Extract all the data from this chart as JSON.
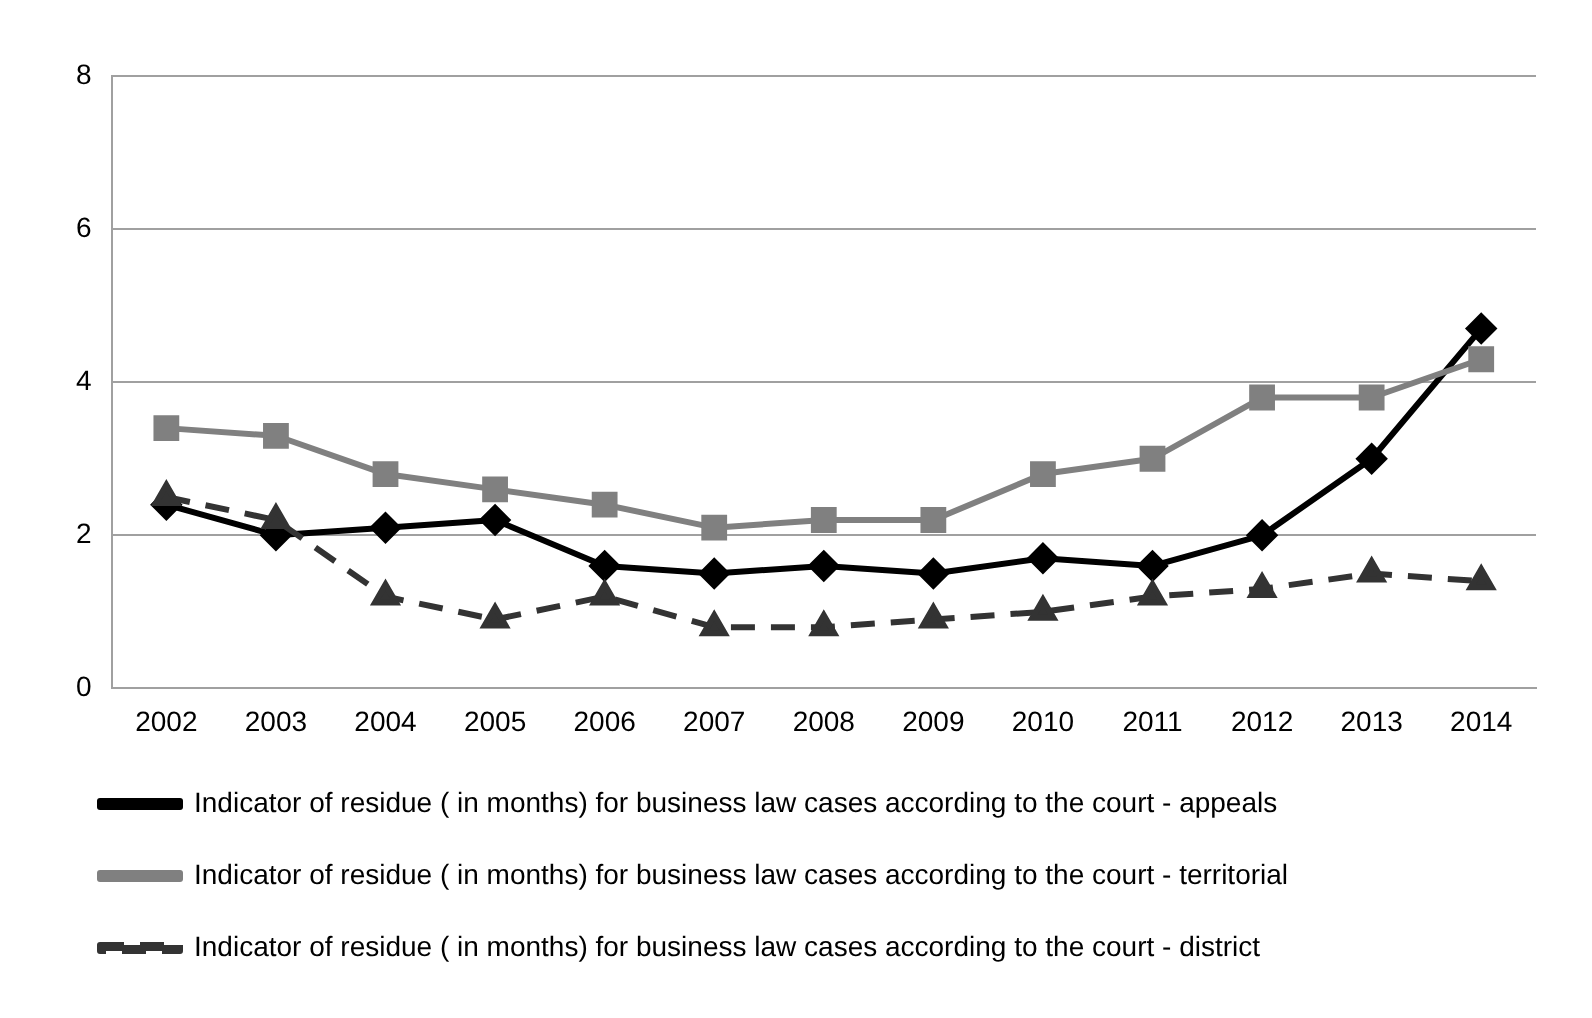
{
  "chart_data": {
    "type": "line",
    "categories": [
      "2002",
      "2003",
      "2004",
      "2005",
      "2006",
      "2007",
      "2008",
      "2009",
      "2010",
      "2011",
      "2012",
      "2013",
      "2014"
    ],
    "series": [
      {
        "name": "Indicator of residue ( in months) for business law cases according to the court - appeals",
        "color": "#000000",
        "marker": "diamond",
        "line_style": "solid",
        "values": [
          2.4,
          2.0,
          2.1,
          2.2,
          1.6,
          1.5,
          1.6,
          1.5,
          1.7,
          1.6,
          2.0,
          3.0,
          4.7
        ]
      },
      {
        "name": "Indicator of residue ( in months) for business law cases according to the court - territorial",
        "color": "#808080",
        "marker": "square",
        "line_style": "solid",
        "values": [
          3.4,
          3.3,
          2.8,
          2.6,
          2.4,
          2.1,
          2.2,
          2.2,
          2.8,
          3.0,
          3.8,
          3.8,
          4.3
        ]
      },
      {
        "name": "Indicator of residue ( in months) for business law cases according to the court - district",
        "color": "#333333",
        "marker": "triangle",
        "line_style": "dashed",
        "values": [
          2.5,
          2.2,
          1.2,
          0.9,
          1.2,
          0.8,
          0.8,
          0.9,
          1.0,
          1.2,
          1.3,
          1.5,
          1.4
        ]
      }
    ],
    "ylim": [
      0,
      8
    ],
    "yticks": [
      0,
      2,
      4,
      6,
      8
    ],
    "grid": "y",
    "legend": "bottom"
  }
}
